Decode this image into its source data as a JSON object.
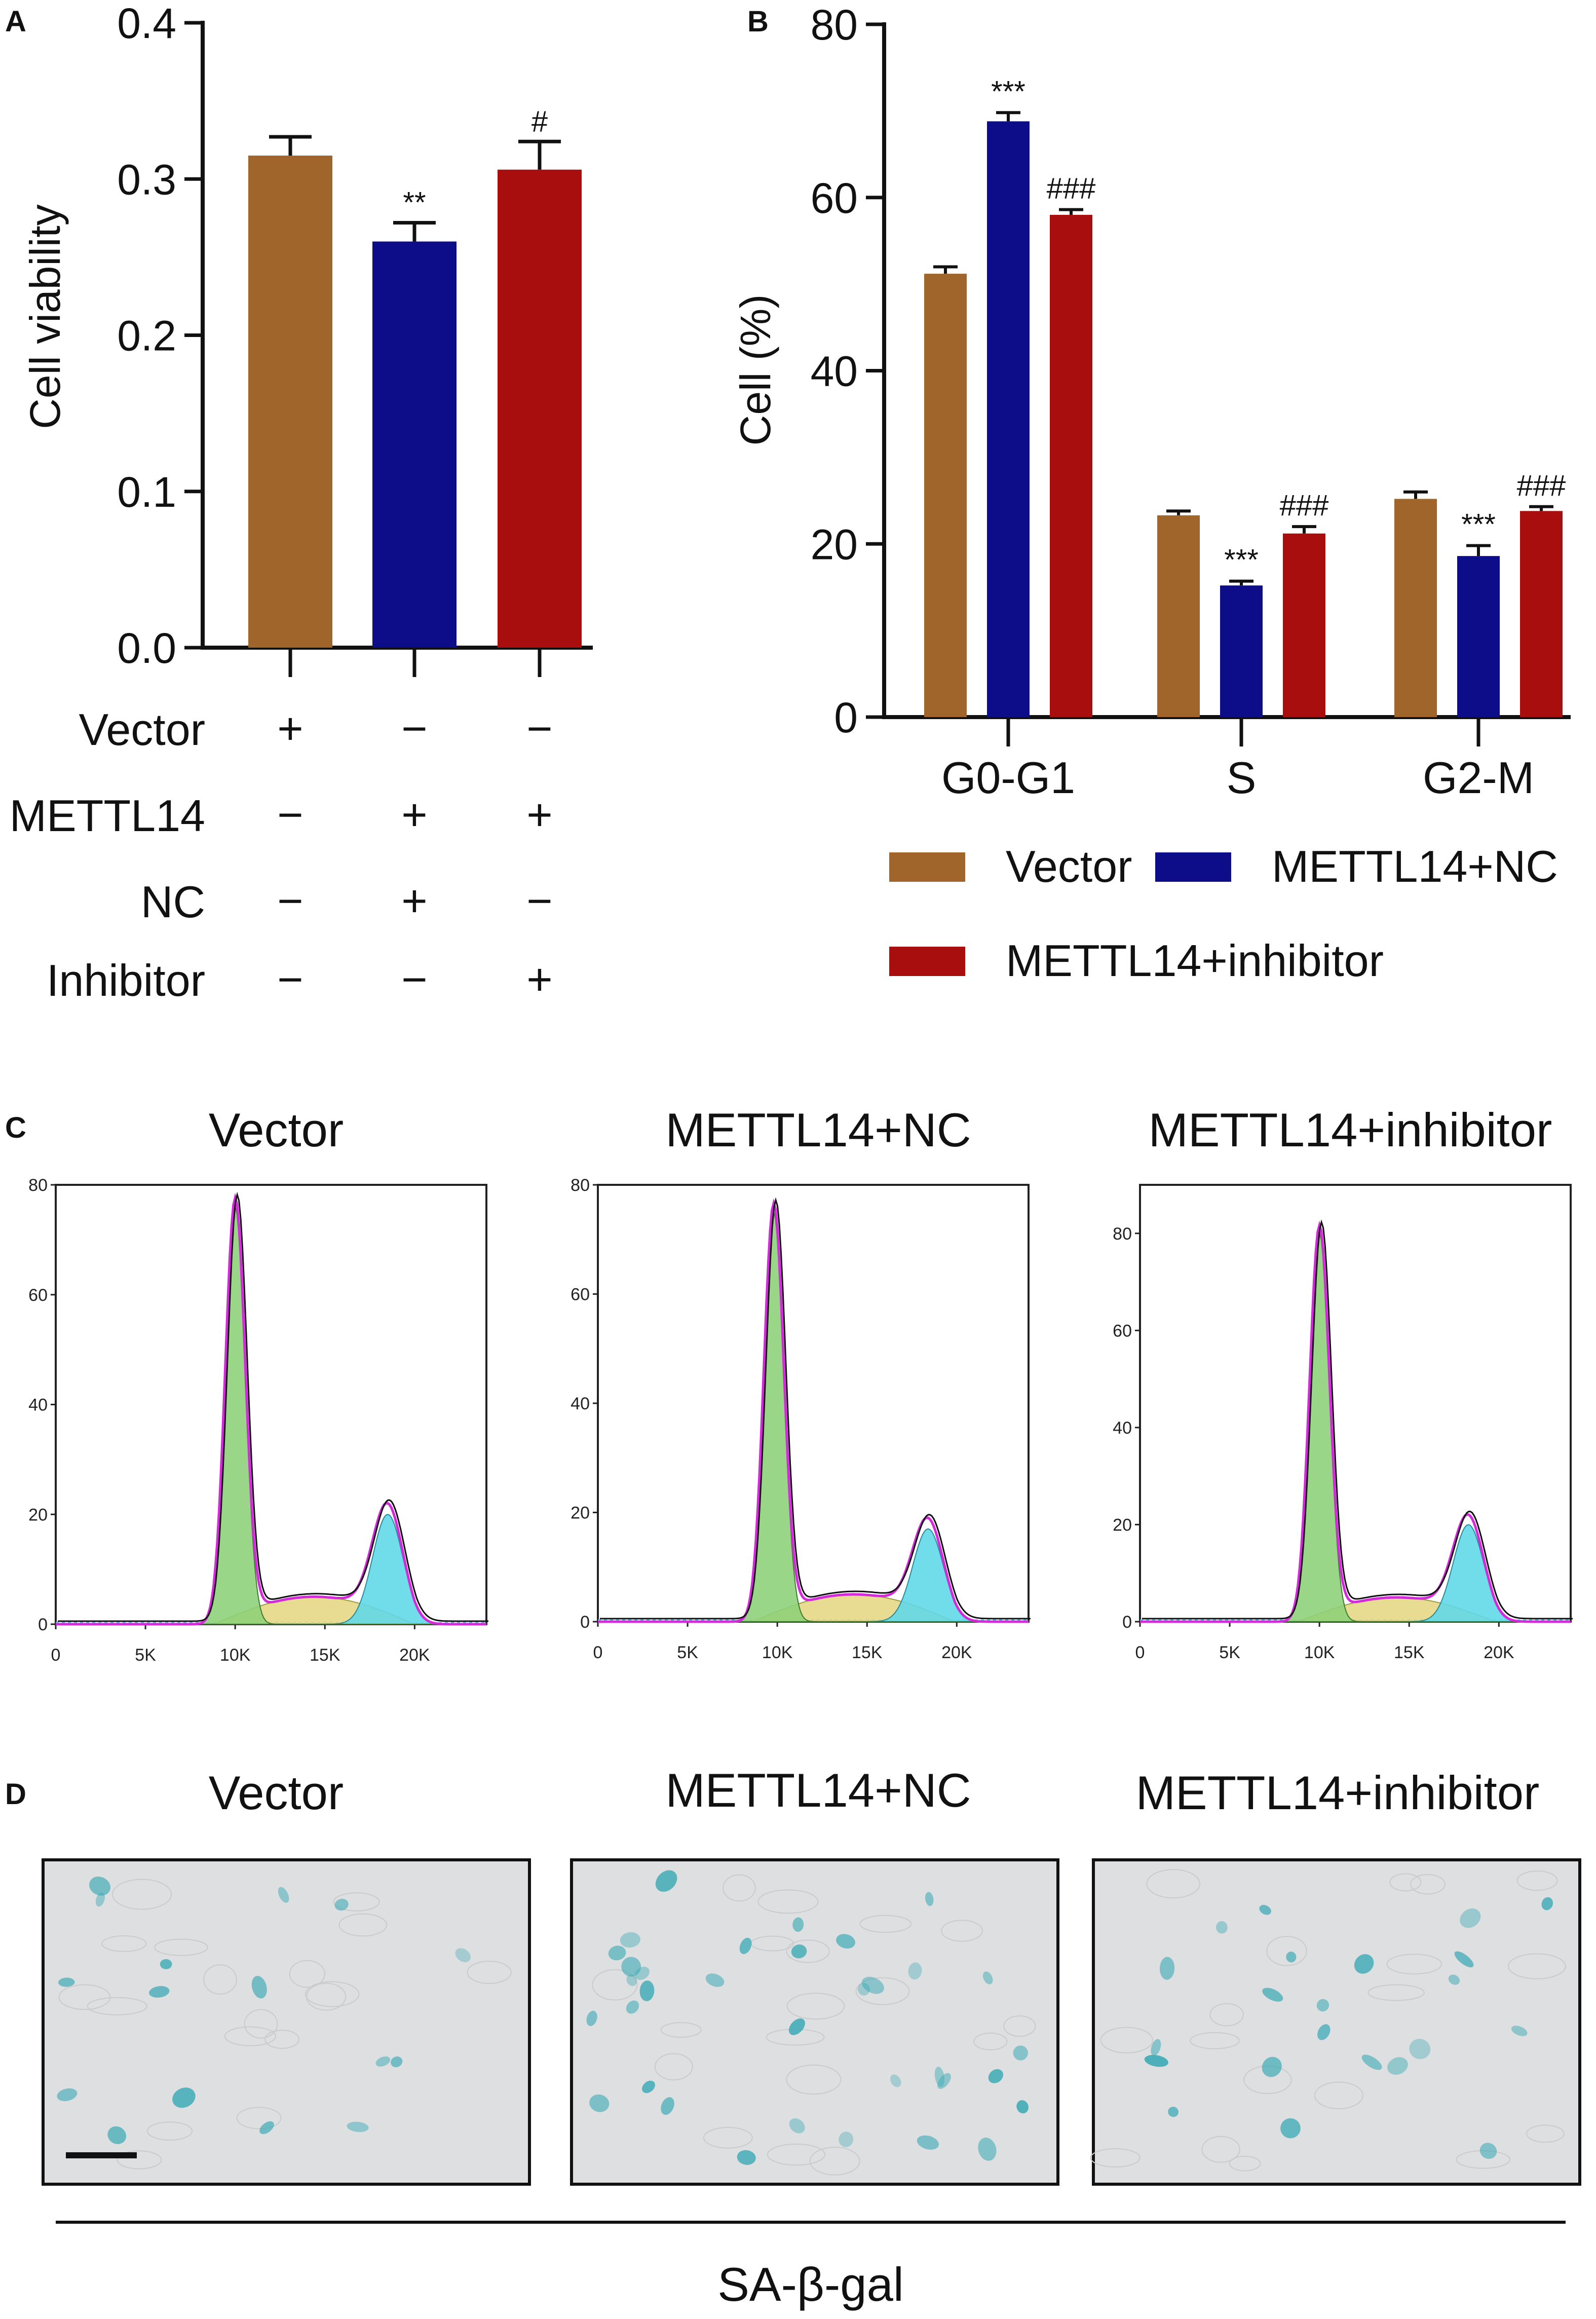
{
  "panel_labels": {
    "A": "A",
    "B": "B",
    "C": "C",
    "D": "D"
  },
  "colors": {
    "vector": "#A0652A",
    "nc": "#0D0D8A",
    "inhibitor": "#A80E0E",
    "g1_fill": "#8FD17A",
    "s_fill": "#E3D67E",
    "g2_fill": "#62D8E8",
    "fit_line": "#D42ADB",
    "cell_stain": "#39A9B5"
  },
  "chart_data": [
    {
      "id": "A",
      "type": "bar",
      "title": "",
      "xlabel": "",
      "ylabel": "Cell viability",
      "ylim": [
        0,
        0.4
      ],
      "yticks": [
        "0.0",
        "0.1",
        "0.2",
        "0.3",
        "0.4"
      ],
      "categories": [
        "Vector",
        "METTL14+NC",
        "METTL14+inhibitor"
      ],
      "values": [
        0.315,
        0.26,
        0.306
      ],
      "errors": [
        0.012,
        0.012,
        0.018
      ],
      "significance": [
        "",
        "**",
        "#"
      ],
      "conditions": {
        "rows": [
          {
            "label": "Vector",
            "signs": [
              "+",
              "−",
              "−"
            ]
          },
          {
            "label": "METTL14",
            "signs": [
              "−",
              "+",
              "+"
            ]
          },
          {
            "label": "NC",
            "signs": [
              "−",
              "+",
              "−"
            ]
          },
          {
            "label": "Inhibitor",
            "signs": [
              "−",
              "−",
              "+"
            ]
          }
        ]
      }
    },
    {
      "id": "B",
      "type": "bar",
      "title": "",
      "xlabel": "",
      "ylabel": "Cell (%)",
      "ylim": [
        0,
        80
      ],
      "yticks": [
        "0",
        "20",
        "40",
        "60",
        "80"
      ],
      "categories": [
        "G0-G1",
        "S",
        "G2-M"
      ],
      "series": [
        {
          "name": "Vector",
          "values": [
            51.2,
            23.3,
            25.2
          ],
          "errors": [
            0.8,
            0.5,
            0.8
          ],
          "significance": [
            "",
            "",
            ""
          ]
        },
        {
          "name": "METTL14+NC",
          "values": [
            68.8,
            15.2,
            18.6
          ],
          "errors": [
            1.0,
            0.5,
            1.2
          ],
          "significance": [
            "***",
            "***",
            "***"
          ]
        },
        {
          "name": "METTL14+inhibitor",
          "values": [
            58.0,
            21.2,
            23.8
          ],
          "errors": [
            0.6,
            0.8,
            0.5
          ],
          "significance": [
            "###",
            "###",
            "###"
          ]
        }
      ],
      "legend": [
        "Vector",
        "METTL14+NC",
        "METTL14+inhibitor"
      ]
    },
    {
      "id": "C",
      "type": "area",
      "panels": [
        {
          "title": "Vector",
          "ymax": 80,
          "yticks": [
            "0",
            "20",
            "40",
            "60",
            "80"
          ],
          "g1_peak": 76,
          "g1_center": 10,
          "s_level": 5,
          "g2_peak": 20,
          "g2_center": 18.5
        },
        {
          "title": "METTL14+NC",
          "ymax": 80,
          "yticks": [
            "0",
            "20",
            "40",
            "60",
            "80"
          ],
          "g1_peak": 75,
          "g1_center": 9.8,
          "s_level": 5,
          "g2_peak": 17,
          "g2_center": 18.4
        },
        {
          "title": "METTL14+inhibitor",
          "ymax": 90,
          "yticks": [
            "0",
            "20",
            "40",
            "60",
            "80"
          ],
          "g1_peak": 80,
          "g1_center": 10,
          "s_level": 5,
          "g2_peak": 20,
          "g2_center": 18.3
        }
      ],
      "xticks": [
        "0",
        "5K",
        "10K",
        "15K",
        "20K"
      ],
      "xlim": [
        0,
        24
      ]
    }
  ],
  "panel_d": {
    "titles": [
      "Vector",
      "METTL14+NC",
      "METTL14+inhibitor"
    ],
    "caption": "SA-β-gal"
  }
}
